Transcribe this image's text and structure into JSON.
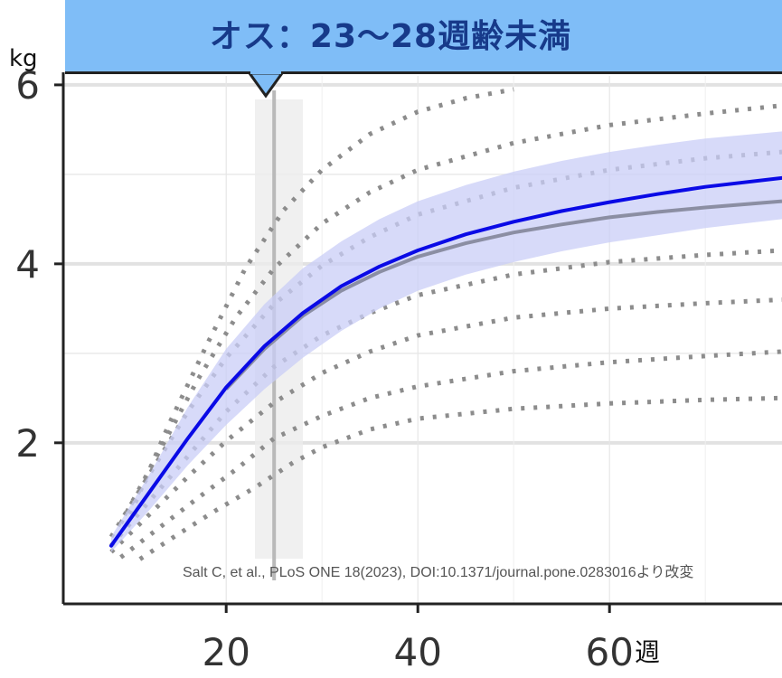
{
  "title": "オス：23〜28週齢未満",
  "source_note": "Salt C, et al., PLoS ONE 18(2023), DOI:10.1371/journal.pone.0283016より改変",
  "colors": {
    "banner": "#7fbdf7",
    "title_text": "#173a8a",
    "main_line": "#0a0ae6",
    "band": "#c9cdf7",
    "gray_line": "#8b8ea3",
    "dotted": "#8c8c8c",
    "highlight": "#ececec"
  },
  "chart_data": {
    "type": "line",
    "title": "オス：23〜28週齢未満",
    "xlabel": "週",
    "ylabel": "kg",
    "xlim": [
      3,
      78
    ],
    "ylim": [
      0.2,
      6.1
    ],
    "x_ticks": [
      20,
      40,
      60
    ],
    "y_ticks": [
      2,
      4,
      6
    ],
    "grid": true,
    "highlight_range": [
      23,
      28
    ],
    "highlight_center": 25,
    "main_curve": {
      "x": [
        8,
        12,
        16,
        20,
        24,
        28,
        32,
        36,
        40,
        45,
        50,
        55,
        60,
        65,
        70,
        78
      ],
      "y": [
        0.85,
        1.45,
        2.05,
        2.62,
        3.08,
        3.45,
        3.75,
        3.97,
        4.15,
        4.33,
        4.47,
        4.59,
        4.69,
        4.78,
        4.86,
        4.96
      ]
    },
    "confidence_band": {
      "x": [
        8,
        12,
        16,
        20,
        24,
        28,
        32,
        36,
        40,
        45,
        50,
        55,
        60,
        65,
        70,
        78
      ],
      "lower": [
        0.78,
        1.25,
        1.75,
        2.2,
        2.6,
        2.95,
        3.25,
        3.5,
        3.7,
        3.88,
        4.02,
        4.14,
        4.24,
        4.32,
        4.4,
        4.5
      ],
      "upper": [
        0.95,
        1.65,
        2.4,
        3.05,
        3.55,
        3.95,
        4.25,
        4.5,
        4.7,
        4.88,
        5.03,
        5.15,
        5.25,
        5.33,
        5.4,
        5.48
      ]
    },
    "gray_curve": {
      "x": [
        20,
        24,
        28,
        32,
        36,
        40,
        45,
        50,
        55,
        60,
        65,
        70,
        78
      ],
      "y": [
        2.6,
        3.05,
        3.42,
        3.7,
        3.91,
        4.08,
        4.23,
        4.35,
        4.44,
        4.52,
        4.58,
        4.63,
        4.7
      ]
    },
    "dotted_curves": [
      {
        "x": [
          10,
          14,
          18,
          22,
          26,
          30,
          35,
          40,
          45,
          50
        ],
        "y": [
          1.2,
          2.2,
          3.1,
          3.95,
          4.6,
          5.05,
          5.45,
          5.7,
          5.85,
          5.95
        ]
      },
      {
        "x": [
          9,
          13,
          17,
          21,
          25,
          30,
          35,
          40,
          50,
          60,
          70,
          78
        ],
        "y": [
          1.1,
          1.9,
          2.7,
          3.4,
          3.95,
          4.45,
          4.8,
          5.05,
          5.35,
          5.55,
          5.68,
          5.77
        ]
      },
      {
        "x": [
          8,
          12,
          16,
          20,
          25,
          30,
          35,
          40,
          50,
          60,
          70,
          78
        ],
        "y": [
          0.95,
          1.65,
          2.35,
          2.95,
          3.55,
          3.98,
          4.3,
          4.55,
          4.85,
          5.05,
          5.18,
          5.25
        ]
      },
      {
        "x": [
          8,
          12,
          16,
          20,
          25,
          30,
          35,
          40,
          50,
          60,
          70,
          78
        ],
        "y": [
          0.85,
          1.35,
          1.85,
          2.35,
          2.85,
          3.2,
          3.45,
          3.65,
          3.88,
          4.02,
          4.1,
          4.15
        ]
      },
      {
        "x": [
          8,
          12,
          16,
          20,
          25,
          30,
          35,
          40,
          50,
          60,
          70,
          78
        ],
        "y": [
          0.78,
          1.2,
          1.62,
          2.02,
          2.45,
          2.78,
          3.02,
          3.2,
          3.4,
          3.5,
          3.56,
          3.6
        ]
      },
      {
        "x": [
          9,
          13,
          17,
          21,
          25,
          30,
          35,
          40,
          50,
          60,
          70,
          78
        ],
        "y": [
          0.72,
          1.05,
          1.38,
          1.7,
          2.05,
          2.3,
          2.5,
          2.63,
          2.8,
          2.9,
          2.97,
          3.02
        ]
      },
      {
        "x": [
          11,
          15,
          19,
          23,
          27,
          30,
          35,
          40,
          50,
          60,
          70,
          78
        ],
        "y": [
          0.7,
          0.98,
          1.25,
          1.5,
          1.78,
          1.95,
          2.15,
          2.27,
          2.38,
          2.44,
          2.48,
          2.5
        ]
      }
    ]
  }
}
